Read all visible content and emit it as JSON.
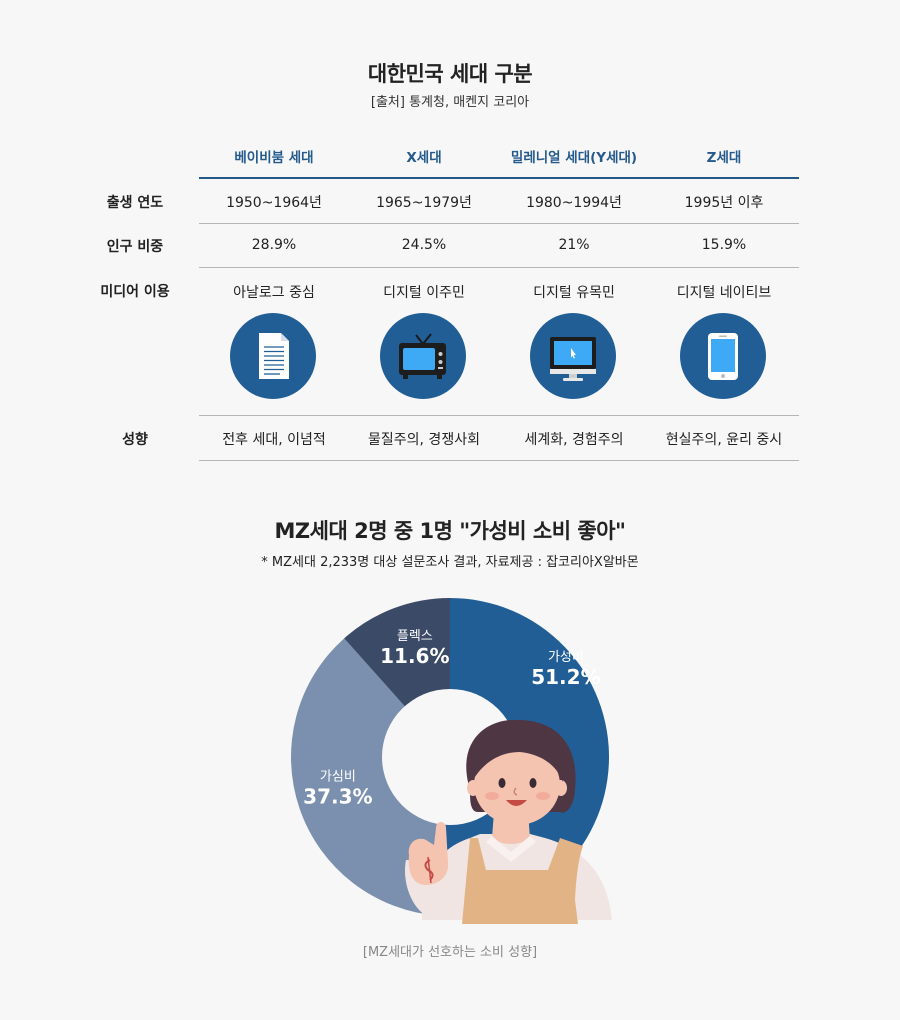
{
  "generations": {
    "title": "대한민국 세대 구분",
    "source": "[출처] 통계청, 매켄지 코리아",
    "columns": [
      "베이비붐 세대",
      "X세대",
      "밀레니얼 세대(Y세대)",
      "Z세대"
    ],
    "rows": [
      {
        "label": "출생 연도",
        "values": [
          "1950~1964년",
          "1965~1979년",
          "1980~1994년",
          "1995년 이후"
        ]
      },
      {
        "label": "인구 비중",
        "values": [
          "28.9%",
          "24.5%",
          "21%",
          "15.9%"
        ]
      },
      {
        "label": "미디어 이용",
        "values": [
          "아날로그 중심",
          "디지털 이주민",
          "디지털 유목민",
          "디지털 네이티브"
        ]
      }
    ],
    "icons": [
      "document-icon",
      "tv-icon",
      "monitor-icon",
      "smartphone-icon"
    ],
    "tendency": {
      "label": "성향",
      "values": [
        "전후 세대, 이념적",
        "물질주의, 경쟁사회",
        "세계화, 경험주의",
        "현실주의, 윤리 중시"
      ]
    }
  },
  "survey": {
    "title": "MZ세대 2명 중 1명 \"가성비 소비 좋아\"",
    "subtitle": "* MZ세대 2,233명 대상 설문조사 결과, 자료제공 : 잡코리아X알바몬",
    "caption": "[MZ세대가 선호하는 소비 성향]"
  },
  "colors": {
    "accent": "#215e96",
    "gasungbi": "#215e96",
    "gasimbi": "#7b8fae",
    "flex": "#3b4a66"
  },
  "chart_data": {
    "type": "pie",
    "donut": true,
    "categories": [
      "가성비",
      "가심비",
      "플렉스"
    ],
    "values": [
      51.2,
      37.3,
      11.6
    ],
    "labels": [
      "51.2%",
      "37.3%",
      "11.6%"
    ]
  }
}
